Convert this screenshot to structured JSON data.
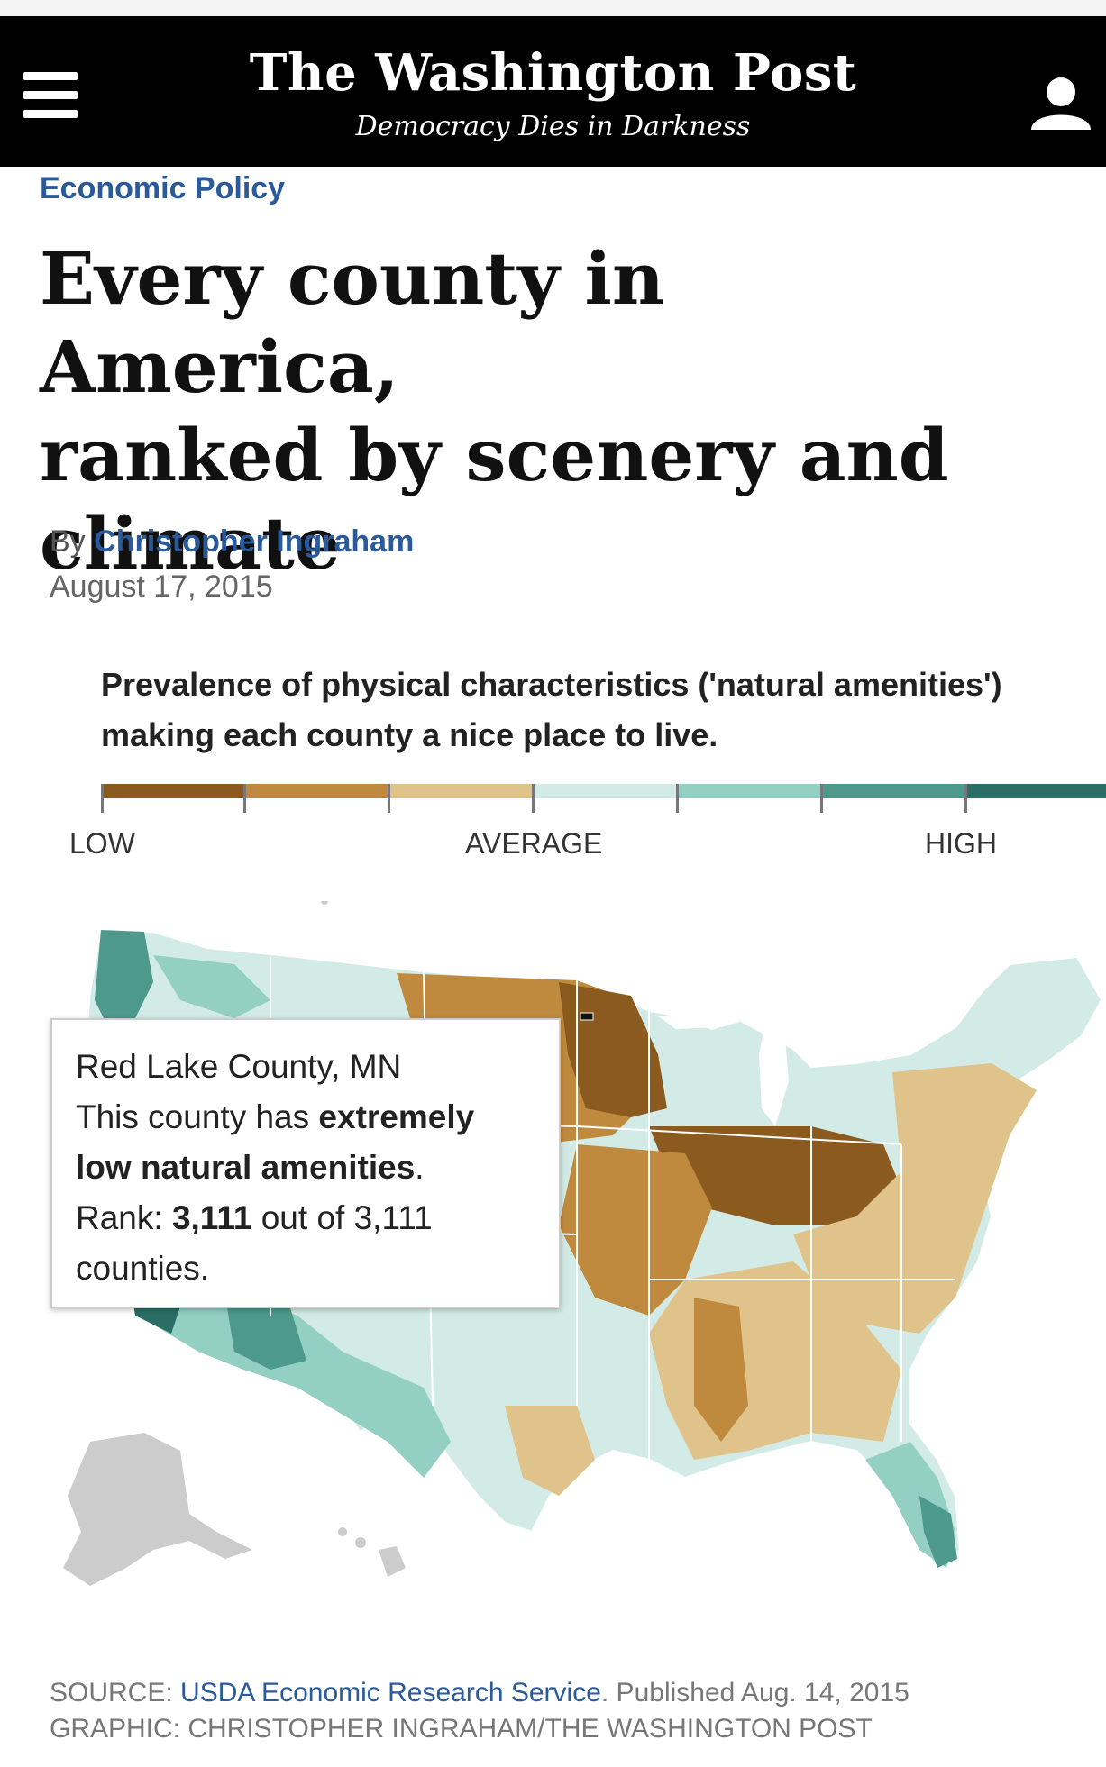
{
  "masthead": {
    "title": "The Washington Post",
    "tagline": "Democracy Dies in Darkness"
  },
  "icons": {
    "menu": "hamburger-menu-icon",
    "account": "user-icon"
  },
  "article": {
    "kicker": "Economic Policy",
    "headline_lines": [
      "Every county in America,",
      "ranked by scenery and",
      "climate"
    ],
    "byline_prefix": "By",
    "author": "Christopher Ingraham",
    "date": "August 17, 2015"
  },
  "chart": {
    "description": "Prevalence of physical characteristics ('natural amenities') making each county a nice place to live.",
    "legend": {
      "labels": {
        "low": "LOW",
        "average": "AVERAGE",
        "high": "HIGH"
      },
      "colors": [
        "#8a5a1e",
        "#c08a3e",
        "#dfc38a",
        "#d3ebe6",
        "#93cfc3",
        "#4d9a8d",
        "#2a6e66"
      ]
    },
    "tooltip": {
      "county": "Red Lake County, MN",
      "line2_prefix": "This county has",
      "line2_bold": "extremely",
      "line3_bold": "low natural amenities",
      "line3_suffix": ".",
      "rank_prefix": "Rank:",
      "rank_bold": "3,111",
      "rank_suffix": "out of 3,111",
      "rank_end": "counties."
    }
  },
  "footer": {
    "source_prefix": "SOURCE:",
    "source_link": "USDA Economic Research Service",
    "source_suffix": ". Published Aug. 14, 2015",
    "graphic": "GRAPHIC: CHRISTOPHER INGRAHAM/THE WASHINGTON POST"
  }
}
